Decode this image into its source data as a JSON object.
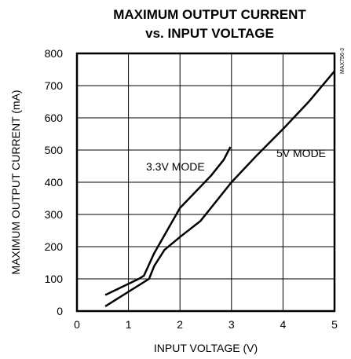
{
  "chart_data": {
    "type": "line",
    "title": "MAXIMUM OUTPUT CURRENT",
    "subtitle": "vs. INPUT VOLTAGE",
    "xlabel": "INPUT VOLTAGE (V)",
    "ylabel": "MAXIMUM OUTPUT CURRENT (mA)",
    "xlim": [
      0,
      5
    ],
    "ylim": [
      0,
      800
    ],
    "xticks": [
      0,
      1,
      2,
      3,
      4,
      5
    ],
    "yticks": [
      0,
      100,
      200,
      300,
      400,
      500,
      600,
      700,
      800
    ],
    "grid": true,
    "watermark": "MAX756-3",
    "series": [
      {
        "name": "3.3V MODE",
        "x": [
          0.55,
          1.2,
          1.3,
          1.5,
          1.75,
          2.0,
          2.3,
          2.6,
          2.85,
          2.98
        ],
        "y": [
          50,
          100,
          110,
          180,
          250,
          320,
          370,
          420,
          470,
          510
        ]
      },
      {
        "name": "5V MODE",
        "x": [
          0.55,
          1.4,
          1.5,
          1.7,
          2.0,
          2.4,
          3.0,
          3.5,
          4.0,
          4.5,
          5.0
        ],
        "y": [
          15,
          100,
          140,
          190,
          230,
          280,
          400,
          485,
          565,
          650,
          745
        ]
      }
    ]
  }
}
